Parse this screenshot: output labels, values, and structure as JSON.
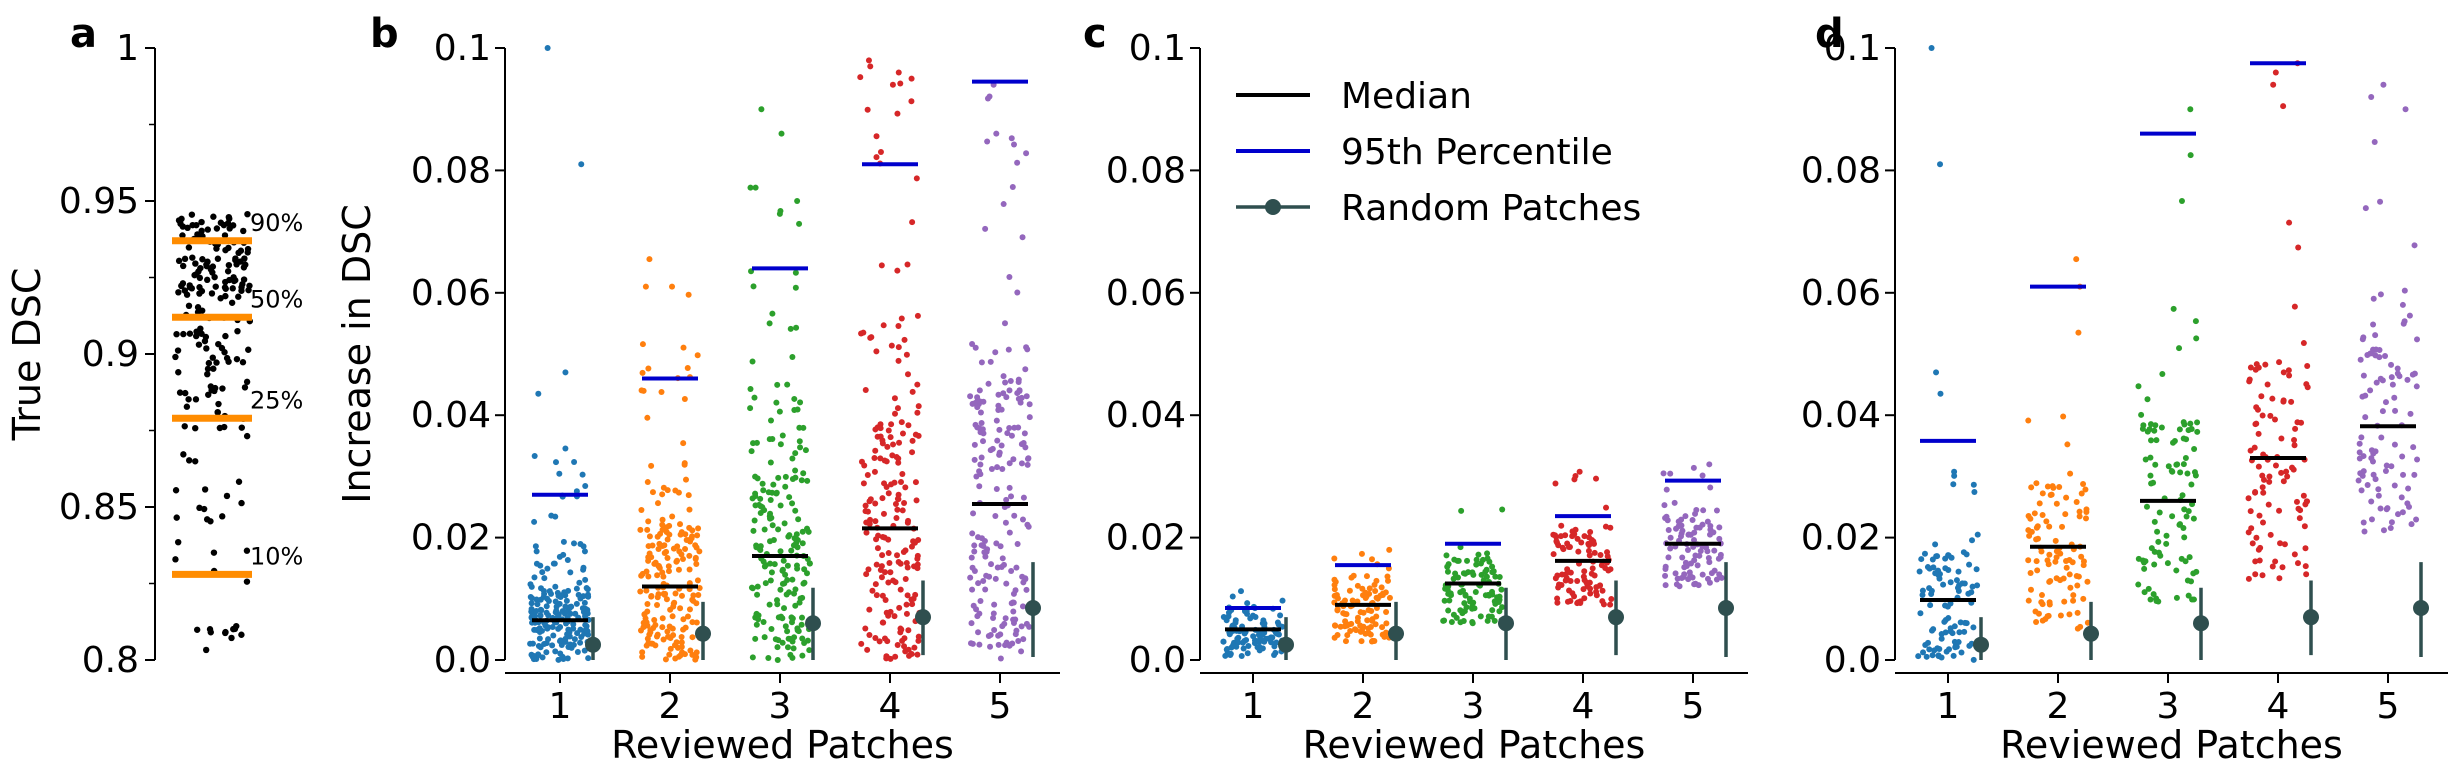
{
  "figure": {
    "background": "#ffffff"
  },
  "colors": {
    "patch_colors": [
      "#1f77b4",
      "#ff7f0e",
      "#2ca02c",
      "#d62728",
      "#9467bd"
    ],
    "median": "#000000",
    "p95": "#0000cc",
    "random": "#2f4f4f",
    "threshold": "#ff8c00",
    "dots_a": "#000000"
  },
  "legend": {
    "median": "Median",
    "p95": "95th Percentile",
    "random": "Random Patches"
  },
  "chart_data": [
    {
      "panel": "a",
      "type": "scatter",
      "ylabel": "True DSC",
      "ylim": [
        0.8,
        1.0
      ],
      "yticks": [
        0.8,
        0.85,
        0.9,
        0.95,
        1.0
      ],
      "ytick_labels": [
        "0.8",
        "0.85",
        "0.9",
        "0.95",
        "1"
      ],
      "minor_yticks": [
        0.825,
        0.875,
        0.925,
        0.975
      ],
      "percentiles": [
        {
          "label": "90%",
          "value": 0.937
        },
        {
          "label": "50%",
          "value": 0.912
        },
        {
          "label": "25%",
          "value": 0.879
        },
        {
          "label": "10%",
          "value": 0.828
        }
      ],
      "n_points": 200
    },
    {
      "panel": "b",
      "type": "scatter",
      "xlabel": "Reviewed Patches",
      "ylabel": "Increase in DSC",
      "ylim": [
        0,
        0.1
      ],
      "yticks": [
        0,
        0.02,
        0.04,
        0.06,
        0.08,
        0.1
      ],
      "ytick_labels": [
        "0.0",
        "0.02",
        "0.04",
        "0.06",
        "0.08",
        "0.1"
      ],
      "categories": [
        "1",
        "2",
        "3",
        "4",
        "5"
      ],
      "median": [
        0.0065,
        0.012,
        0.017,
        0.0215,
        0.0255
      ],
      "p95": [
        0.027,
        0.046,
        0.064,
        0.081,
        0.0945
      ],
      "random_mean": [
        0.0025,
        0.0043,
        0.006,
        0.007,
        0.0085
      ],
      "random_low": [
        0.0,
        0.0,
        0.0,
        0.0008,
        0.0005
      ],
      "random_high": [
        0.007,
        0.0095,
        0.0118,
        0.013,
        0.016
      ],
      "spread_max": [
        0.036,
        0.06,
        0.078,
        0.098,
        0.095
      ],
      "outliers": [
        [
          0.047,
          0.0435,
          0.081,
          0.1
        ],
        [
          0.061,
          0.0655,
          0.061
        ],
        [
          0.09,
          0.086,
          0.075
        ],
        [
          0.097,
          0.096,
          0.094
        ],
        [
          0.094
        ]
      ],
      "n_points": 200
    },
    {
      "panel": "c",
      "type": "scatter",
      "xlabel": "Reviewed Patches",
      "ylim": [
        0,
        0.1
      ],
      "yticks": [
        0,
        0.02,
        0.04,
        0.06,
        0.08,
        0.1
      ],
      "ytick_labels": [
        "0.0",
        "0.02",
        "0.04",
        "0.06",
        "0.08",
        "0.1"
      ],
      "categories": [
        "1",
        "2",
        "3",
        "4",
        "5"
      ],
      "median": [
        0.005,
        0.009,
        0.0125,
        0.0162,
        0.019
      ],
      "p95": [
        0.0085,
        0.0155,
        0.019,
        0.0235,
        0.0293
      ],
      "random_mean": [
        0.0025,
        0.0043,
        0.006,
        0.007,
        0.0085
      ],
      "random_low": [
        0.0,
        0.0,
        0.0,
        0.0008,
        0.0005
      ],
      "random_high": [
        0.007,
        0.0095,
        0.0118,
        0.013,
        0.016
      ],
      "spread_min": [
        0.0005,
        0.003,
        0.006,
        0.009,
        0.012
      ],
      "spread_max": [
        0.012,
        0.018,
        0.0255,
        0.031,
        0.034
      ],
      "n_points": 100
    },
    {
      "panel": "d",
      "type": "scatter",
      "xlabel": "Reviewed Patches",
      "ylim": [
        0,
        0.1
      ],
      "yticks": [
        0,
        0.02,
        0.04,
        0.06,
        0.08,
        0.1
      ],
      "ytick_labels": [
        "0.0",
        "0.02",
        "0.04",
        "0.06",
        "0.08",
        "0.1"
      ],
      "categories": [
        "1",
        "2",
        "3",
        "4",
        "5"
      ],
      "median": [
        0.0098,
        0.0185,
        0.026,
        0.033,
        0.0382
      ],
      "p95": [
        0.0358,
        0.061,
        0.086,
        0.0975,
        null
      ],
      "random_mean": [
        0.0025,
        0.0043,
        0.006,
        0.007,
        0.0085
      ],
      "random_low": [
        0.0,
        0.0,
        0.0,
        0.0008,
        0.0005
      ],
      "random_high": [
        0.007,
        0.0095,
        0.0118,
        0.013,
        0.016
      ],
      "spread_min": [
        0.0,
        0.005,
        0.009,
        0.013,
        0.02
      ],
      "spread_max": [
        0.032,
        0.047,
        0.066,
        0.08,
        0.094
      ],
      "outliers": [
        [
          0.047,
          0.081,
          0.1,
          0.0435
        ],
        [
          0.0655,
          0.061,
          0.0535
        ],
        [
          0.09,
          0.0825,
          0.075
        ],
        [
          0.0975,
          0.096,
          0.094,
          0.0905
        ],
        [
          0.094,
          0.092,
          0.09
        ]
      ],
      "n_points": 100
    }
  ]
}
